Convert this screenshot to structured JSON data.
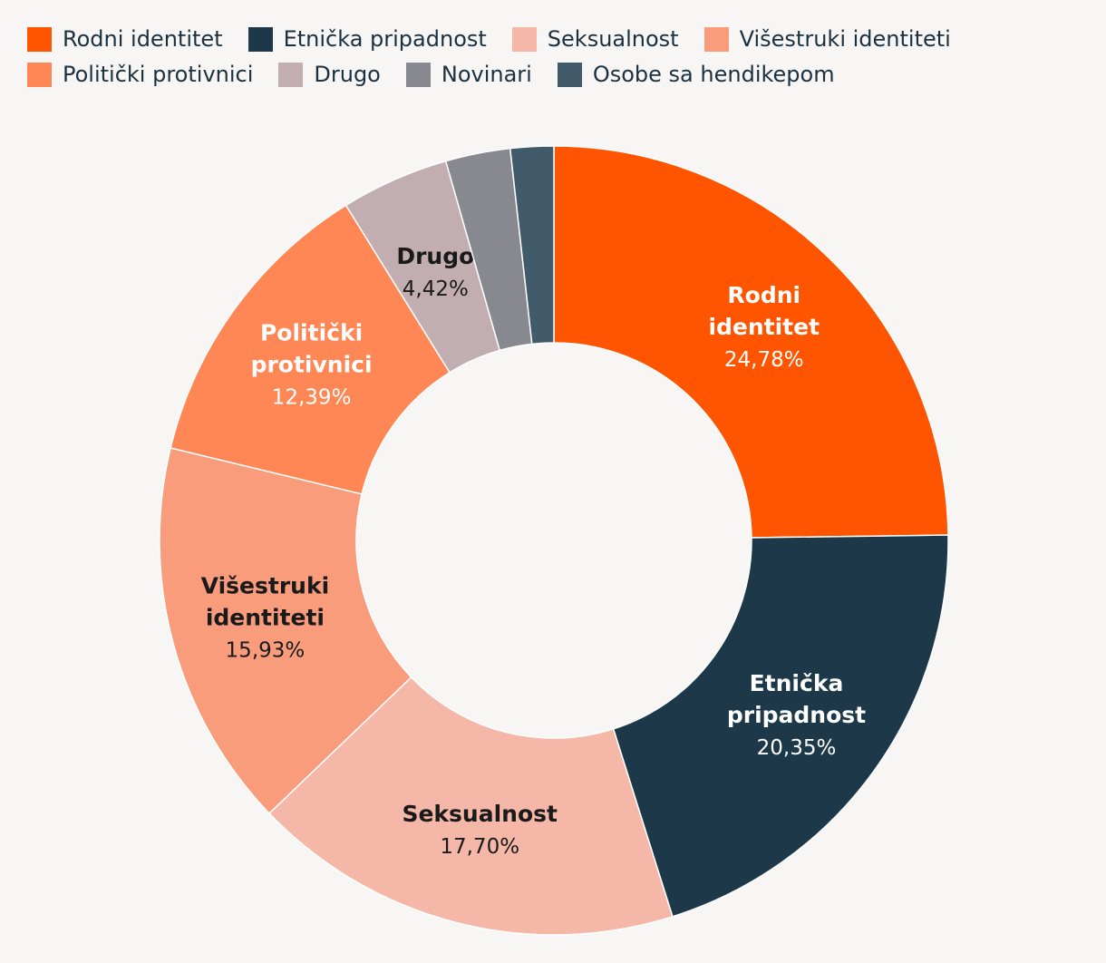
{
  "chart_data": {
    "type": "pie",
    "variant": "donut",
    "title": "",
    "legend_position": "top",
    "categories": [
      "Rodni identitet",
      "Etnička pripadnost",
      "Seksualnost",
      "Višestruki identiteti",
      "Politički protivnici",
      "Drugo",
      "Novinari",
      "Osobe sa hendikepom"
    ],
    "values": [
      24.78,
      20.35,
      17.7,
      15.93,
      12.39,
      4.42,
      2.65,
      1.77
    ],
    "colors": [
      "#ff5500",
      "#1c3849",
      "#f5b8a8",
      "#f99c7c",
      "#ff8655",
      "#c2aeb1",
      "#888890",
      "#415b6a"
    ],
    "slices": [
      {
        "name_lines": [
          "Rodni",
          "identitet"
        ],
        "value_label": "24,78%",
        "text_color": "#ffffff"
      },
      {
        "name_lines": [
          "Etnička",
          "pripadnost"
        ],
        "value_label": "20,35%",
        "text_color": "#ffffff"
      },
      {
        "name_lines": [
          "Seksualnost"
        ],
        "value_label": "17,70%",
        "text_color": "#1a1a1a"
      },
      {
        "name_lines": [
          "Višestruki",
          "identiteti"
        ],
        "value_label": "15,93%",
        "text_color": "#1a1a1a"
      },
      {
        "name_lines": [
          "Politički",
          "protivnici"
        ],
        "value_label": "12,39%",
        "text_color": "#ffffff"
      },
      {
        "name_lines": [
          "Drugo"
        ],
        "value_label": "4,42%",
        "text_color": "#1a1a1a"
      },
      {
        "name_lines": [],
        "value_label": "",
        "text_color": "#1a1a1a"
      },
      {
        "name_lines": [],
        "value_label": "",
        "text_color": "#1a1a1a"
      }
    ]
  }
}
